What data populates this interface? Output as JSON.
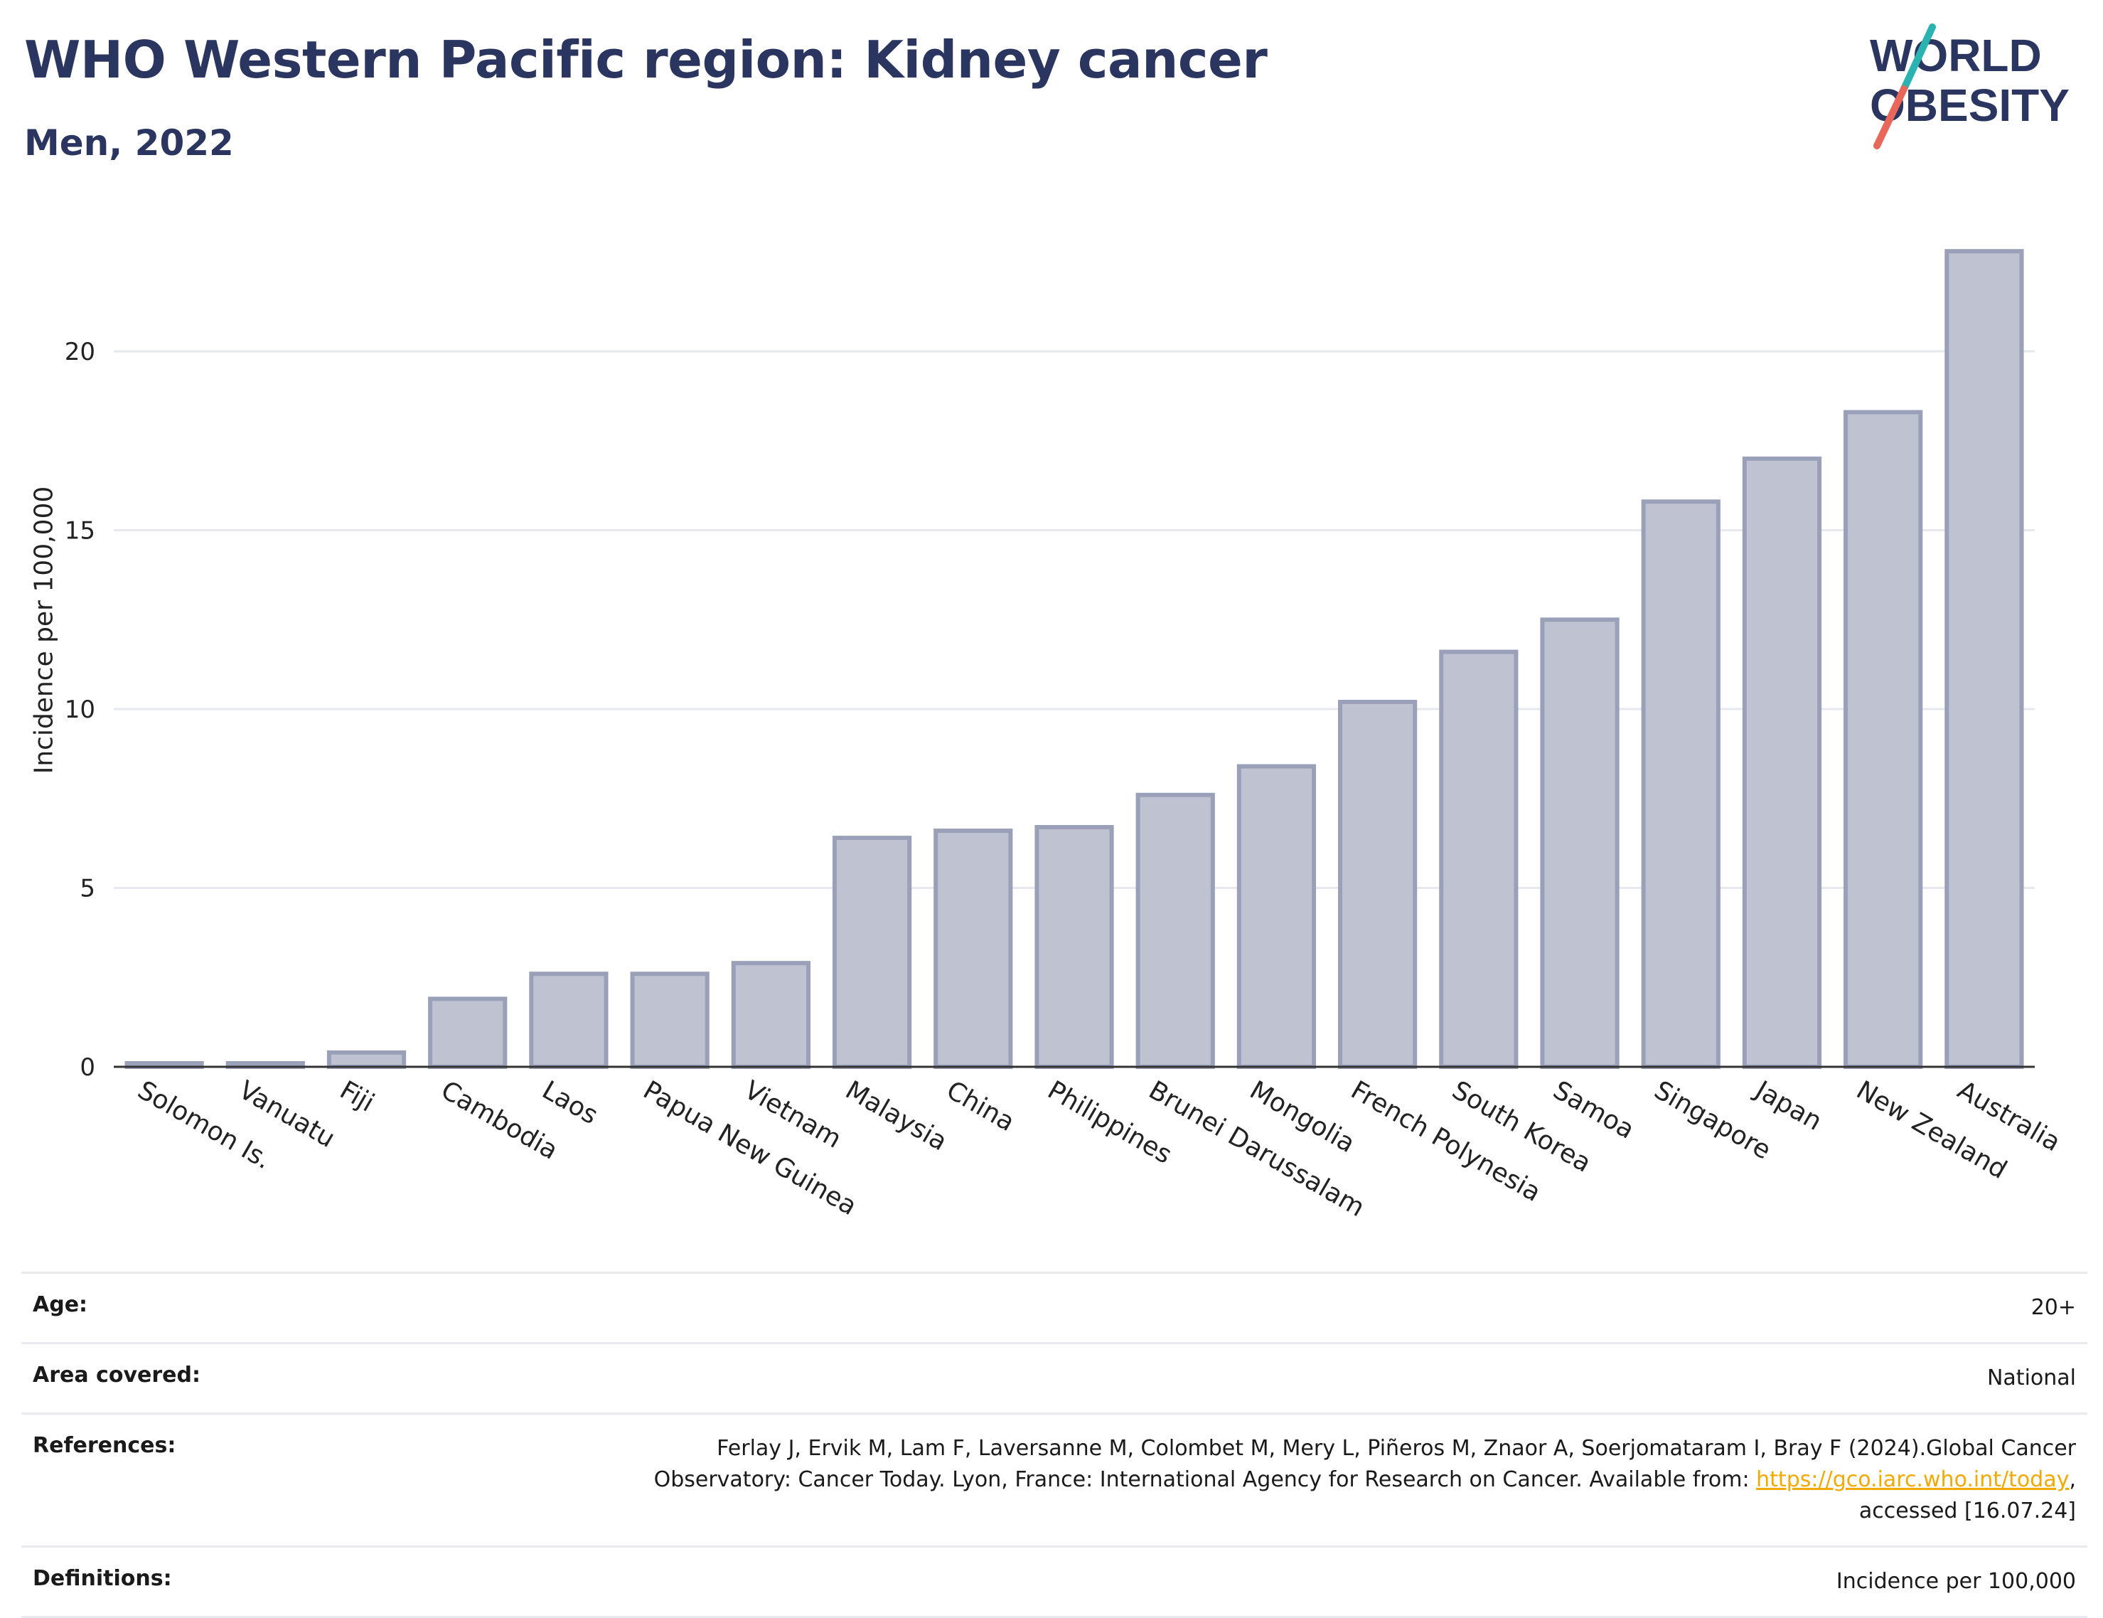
{
  "header": {
    "title": "WHO Western Pacific region: Kidney cancer",
    "subtitle": "Men, 2022"
  },
  "logo": {
    "line1": "WORLD",
    "line2": "OBESITY",
    "colors": {
      "text": "#2b3660",
      "slash_teal": "#2bb3b1",
      "slash_coral": "#e8675a"
    }
  },
  "chart_data": {
    "type": "bar",
    "ylabel": "Incidence per 100,000",
    "ylim": [
      0,
      23.5
    ],
    "yticks": [
      0,
      5,
      10,
      15,
      20
    ],
    "grid": true,
    "bar_fill": "#bfc3d1",
    "bar_stroke": "#9aa0b8",
    "categories": [
      "Solomon Is.",
      "Vanuatu",
      "Fiji",
      "Cambodia",
      "Laos",
      "Papua New Guinea",
      "Vietnam",
      "Malaysia",
      "China",
      "Philippines",
      "Brunei Darussalam",
      "Mongolia",
      "French Polynesia",
      "South Korea",
      "Samoa",
      "Singapore",
      "Japan",
      "New Zealand",
      "Australia"
    ],
    "values": [
      0.1,
      0.1,
      0.4,
      1.9,
      2.6,
      2.6,
      2.9,
      6.4,
      6.6,
      6.7,
      7.6,
      8.4,
      10.2,
      11.6,
      12.5,
      15.8,
      17.0,
      18.3,
      22.8
    ]
  },
  "meta": {
    "age_label": "Age:",
    "age_value": "20+",
    "area_label": "Area covered:",
    "area_value": "National",
    "references_label": "References:",
    "references_line1": "Ferlay J, Ervik M, Lam F, Laversanne M, Colombet M, Mery L, Piñeros M, Znaor A, Soerjomataram I, Bray F (2024).Global Cancer",
    "references_line2_prefix": "Observatory: Cancer Today. Lyon, France: International Agency for Research on Cancer. Available from: ",
    "references_link": "https://gco.iarc.who.int/today",
    "references_line2_suffix": ",",
    "references_line3": "accessed [16.07.24]",
    "definitions_label": "Definitions:",
    "definitions_value": "Incidence per 100,000"
  }
}
